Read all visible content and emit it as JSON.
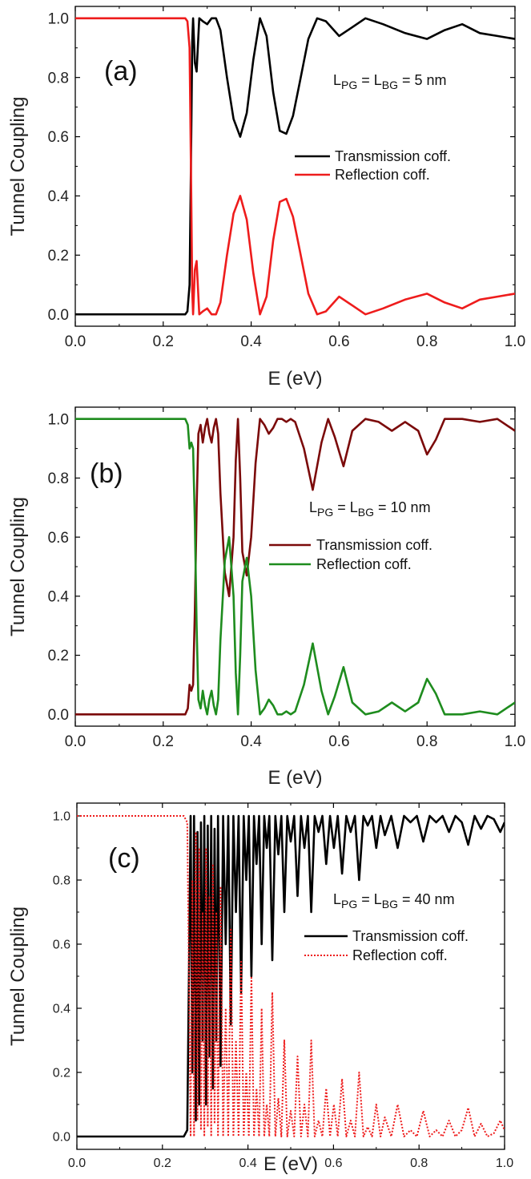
{
  "chart_data": [
    {
      "type": "line",
      "panel_label": "(a)",
      "annotation_parts": [
        "L",
        "PG",
        " = L",
        "BG",
        " = 5 nm"
      ],
      "annotation_text": "LPG = LBG = 5 nm",
      "xlabel": "E (eV)",
      "ylabel": "Tunnel Coupling",
      "xlim": [
        0.0,
        1.0
      ],
      "ylim": [
        -0.04,
        1.04
      ],
      "xticks": [
        "0.0",
        "0.2",
        "0.4",
        "0.6",
        "0.8",
        "1.0"
      ],
      "yticks": [
        "0.0",
        "0.2",
        "0.4",
        "0.6",
        "0.8",
        "1.0"
      ],
      "legend_position": "center-right",
      "series": [
        {
          "name": "Transmission coff.",
          "color": "#000000",
          "dash": "solid",
          "x": [
            0,
            0.25,
            0.255,
            0.26,
            0.263,
            0.266,
            0.268,
            0.272,
            0.276,
            0.282,
            0.29,
            0.3,
            0.31,
            0.32,
            0.33,
            0.345,
            0.36,
            0.375,
            0.39,
            0.405,
            0.42,
            0.435,
            0.45,
            0.465,
            0.48,
            0.495,
            0.51,
            0.53,
            0.55,
            0.57,
            0.6,
            0.63,
            0.66,
            0.7,
            0.75,
            0.8,
            0.84,
            0.88,
            0.92,
            0.96,
            1.0
          ],
          "y": [
            0,
            0,
            0.01,
            0.1,
            0.5,
            0.92,
            1.0,
            0.85,
            0.82,
            1.0,
            0.99,
            0.98,
            1.0,
            1.0,
            0.96,
            0.8,
            0.66,
            0.6,
            0.68,
            0.86,
            1.0,
            0.94,
            0.75,
            0.62,
            0.61,
            0.67,
            0.78,
            0.93,
            1.0,
            0.99,
            0.94,
            0.97,
            1.0,
            0.98,
            0.95,
            0.93,
            0.96,
            0.98,
            0.95,
            0.94,
            0.93
          ]
        },
        {
          "name": "Reflection coff.",
          "color": "#ee1c1c",
          "dash": "solid",
          "x": [
            0,
            0.25,
            0.255,
            0.26,
            0.263,
            0.266,
            0.268,
            0.272,
            0.276,
            0.282,
            0.29,
            0.3,
            0.31,
            0.32,
            0.33,
            0.345,
            0.36,
            0.375,
            0.39,
            0.405,
            0.42,
            0.435,
            0.45,
            0.465,
            0.48,
            0.495,
            0.51,
            0.53,
            0.55,
            0.57,
            0.6,
            0.63,
            0.66,
            0.7,
            0.75,
            0.8,
            0.84,
            0.88,
            0.92,
            0.96,
            1.0
          ],
          "y": [
            1,
            1,
            0.99,
            0.9,
            0.5,
            0.08,
            0.0,
            0.15,
            0.18,
            0.0,
            0.01,
            0.02,
            0.0,
            0.0,
            0.04,
            0.2,
            0.34,
            0.4,
            0.32,
            0.14,
            0.0,
            0.06,
            0.25,
            0.38,
            0.39,
            0.33,
            0.22,
            0.07,
            0.0,
            0.01,
            0.06,
            0.03,
            0.0,
            0.02,
            0.05,
            0.07,
            0.04,
            0.02,
            0.05,
            0.06,
            0.07
          ]
        }
      ]
    },
    {
      "type": "line",
      "panel_label": "(b)",
      "annotation_parts": [
        "L",
        "PG",
        " = L",
        "BG",
        " = 10 nm"
      ],
      "annotation_text": "LPG = LBG = 10 nm",
      "xlabel": "E (eV)",
      "ylabel": "Tunnel Coupling",
      "xlim": [
        0.0,
        1.0
      ],
      "ylim": [
        -0.04,
        1.04
      ],
      "xticks": [
        "0.0",
        "0.2",
        "0.4",
        "0.6",
        "0.8",
        "1.0"
      ],
      "yticks": [
        "0.0",
        "0.2",
        "0.4",
        "0.6",
        "0.8",
        "1.0"
      ],
      "legend_position": "center-right",
      "series": [
        {
          "name": "Transmission coff.",
          "color": "#7b0a0a",
          "dash": "solid",
          "x": [
            0,
            0.25,
            0.256,
            0.26,
            0.264,
            0.268,
            0.272,
            0.276,
            0.28,
            0.285,
            0.29,
            0.295,
            0.3,
            0.305,
            0.31,
            0.315,
            0.32,
            0.325,
            0.33,
            0.34,
            0.35,
            0.36,
            0.365,
            0.37,
            0.375,
            0.38,
            0.39,
            0.4,
            0.41,
            0.42,
            0.43,
            0.44,
            0.45,
            0.46,
            0.47,
            0.48,
            0.49,
            0.5,
            0.52,
            0.54,
            0.56,
            0.575,
            0.59,
            0.61,
            0.63,
            0.66,
            0.69,
            0.72,
            0.75,
            0.78,
            0.8,
            0.82,
            0.84,
            0.88,
            0.92,
            0.96,
            1.0
          ],
          "y": [
            0,
            0,
            0.02,
            0.1,
            0.08,
            0.1,
            0.35,
            0.7,
            0.95,
            0.98,
            0.92,
            0.97,
            1.0,
            0.95,
            0.92,
            0.97,
            1.0,
            0.95,
            0.75,
            0.48,
            0.4,
            0.6,
            0.86,
            1.0,
            0.8,
            0.55,
            0.47,
            0.6,
            0.85,
            1.0,
            0.98,
            0.95,
            0.97,
            1.0,
            1.0,
            0.99,
            1.0,
            0.99,
            0.9,
            0.76,
            0.92,
            1.0,
            0.94,
            0.84,
            0.96,
            1.0,
            0.99,
            0.96,
            0.99,
            0.96,
            0.88,
            0.93,
            1.0,
            1.0,
            0.99,
            1.0,
            0.96
          ]
        },
        {
          "name": "Reflection coff.",
          "color": "#1e8c1e",
          "dash": "solid",
          "x": [
            0,
            0.25,
            0.256,
            0.26,
            0.264,
            0.268,
            0.272,
            0.276,
            0.28,
            0.285,
            0.29,
            0.295,
            0.3,
            0.305,
            0.31,
            0.315,
            0.32,
            0.325,
            0.33,
            0.34,
            0.35,
            0.36,
            0.365,
            0.37,
            0.375,
            0.38,
            0.39,
            0.4,
            0.41,
            0.42,
            0.43,
            0.44,
            0.45,
            0.46,
            0.47,
            0.48,
            0.49,
            0.5,
            0.52,
            0.54,
            0.56,
            0.575,
            0.59,
            0.61,
            0.63,
            0.66,
            0.69,
            0.72,
            0.75,
            0.78,
            0.8,
            0.82,
            0.84,
            0.88,
            0.92,
            0.96,
            1.0
          ],
          "y": [
            1,
            1,
            0.98,
            0.9,
            0.92,
            0.9,
            0.65,
            0.3,
            0.05,
            0.02,
            0.08,
            0.03,
            0.0,
            0.05,
            0.08,
            0.03,
            0.0,
            0.05,
            0.25,
            0.52,
            0.6,
            0.4,
            0.14,
            0.0,
            0.2,
            0.45,
            0.53,
            0.4,
            0.15,
            0.0,
            0.02,
            0.05,
            0.03,
            0.0,
            0.0,
            0.01,
            0.0,
            0.01,
            0.1,
            0.24,
            0.08,
            0.0,
            0.06,
            0.16,
            0.04,
            0.0,
            0.01,
            0.04,
            0.01,
            0.04,
            0.12,
            0.07,
            0.0,
            0.0,
            0.01,
            0.0,
            0.04
          ]
        }
      ]
    },
    {
      "type": "line",
      "panel_label": "(c)",
      "annotation_parts": [
        "L",
        "PG",
        " = L",
        "BG",
        " = 40 nm"
      ],
      "annotation_text": "LPG = LBG = 40 nm",
      "xlabel": "E (eV)",
      "ylabel": "Tunnel Coupling",
      "xlim": [
        0.0,
        1.0
      ],
      "ylim": [
        -0.04,
        1.04
      ],
      "xticks": [
        "0.0",
        "0.2",
        "0.4",
        "0.6",
        "0.8",
        "1.0"
      ],
      "yticks": [
        "0.0",
        "0.2",
        "0.4",
        "0.6",
        "0.8",
        "1.0"
      ],
      "legend_position": "center-right",
      "series": [
        {
          "name": "Transmission coff.",
          "color": "#000000",
          "dash": "solid",
          "x": [
            0,
            0.25,
            0.258,
            0.262,
            0.266,
            0.27,
            0.274,
            0.278,
            0.282,
            0.286,
            0.29,
            0.294,
            0.298,
            0.302,
            0.306,
            0.31,
            0.314,
            0.318,
            0.322,
            0.326,
            0.33,
            0.336,
            0.342,
            0.348,
            0.354,
            0.36,
            0.366,
            0.372,
            0.378,
            0.384,
            0.39,
            0.396,
            0.402,
            0.408,
            0.414,
            0.42,
            0.426,
            0.432,
            0.438,
            0.444,
            0.45,
            0.457,
            0.464,
            0.471,
            0.478,
            0.485,
            0.492,
            0.5,
            0.508,
            0.516,
            0.524,
            0.532,
            0.54,
            0.548,
            0.556,
            0.565,
            0.574,
            0.583,
            0.592,
            0.601,
            0.61,
            0.62,
            0.63,
            0.64,
            0.65,
            0.66,
            0.67,
            0.68,
            0.69,
            0.7,
            0.71,
            0.72,
            0.735,
            0.75,
            0.765,
            0.78,
            0.795,
            0.81,
            0.825,
            0.84,
            0.855,
            0.87,
            0.885,
            0.9,
            0.915,
            0.93,
            0.945,
            0.96,
            0.975,
            0.99,
            1.0
          ],
          "y": [
            0,
            0,
            0.02,
            0.5,
            1.0,
            0.2,
            1.0,
            0.05,
            0.95,
            0.1,
            0.98,
            0.3,
            1.0,
            0.1,
            0.97,
            0.25,
            1.0,
            0.15,
            0.96,
            0.3,
            1.0,
            0.22,
            1.0,
            0.6,
            1.0,
            0.35,
            1.0,
            0.7,
            1.0,
            0.45,
            1.0,
            0.8,
            1.0,
            0.5,
            1.0,
            0.85,
            1.0,
            0.6,
            1.0,
            0.9,
            1.0,
            0.55,
            1.0,
            0.88,
            1.0,
            0.7,
            1.0,
            0.92,
            1.0,
            0.75,
            1.0,
            0.9,
            1.0,
            0.7,
            1.0,
            0.95,
            1.0,
            0.85,
            1.0,
            0.9,
            1.0,
            0.82,
            1.0,
            0.95,
            1.0,
            0.8,
            1.0,
            0.97,
            1.0,
            0.9,
            1.0,
            0.94,
            1.0,
            0.9,
            1.0,
            0.98,
            1.0,
            0.92,
            1.0,
            0.98,
            1.0,
            0.95,
            1.0,
            0.98,
            0.91,
            1.0,
            0.96,
            1.0,
            0.99,
            0.95,
            0.98
          ]
        },
        {
          "name": "Reflection coff.",
          "color": "#ee1c1c",
          "dash": "dotted",
          "x": [
            0,
            0.25,
            0.258,
            0.262,
            0.266,
            0.27,
            0.274,
            0.278,
            0.282,
            0.286,
            0.29,
            0.294,
            0.298,
            0.302,
            0.306,
            0.31,
            0.314,
            0.318,
            0.322,
            0.326,
            0.33,
            0.336,
            0.342,
            0.348,
            0.354,
            0.36,
            0.366,
            0.372,
            0.378,
            0.384,
            0.39,
            0.396,
            0.402,
            0.408,
            0.414,
            0.42,
            0.426,
            0.432,
            0.438,
            0.444,
            0.45,
            0.457,
            0.464,
            0.471,
            0.478,
            0.485,
            0.492,
            0.5,
            0.508,
            0.516,
            0.524,
            0.532,
            0.54,
            0.548,
            0.556,
            0.565,
            0.574,
            0.583,
            0.592,
            0.601,
            0.61,
            0.62,
            0.63,
            0.64,
            0.65,
            0.66,
            0.67,
            0.68,
            0.69,
            0.7,
            0.71,
            0.72,
            0.735,
            0.75,
            0.765,
            0.78,
            0.795,
            0.81,
            0.825,
            0.84,
            0.855,
            0.87,
            0.885,
            0.9,
            0.915,
            0.93,
            0.945,
            0.96,
            0.975,
            0.99,
            1.0
          ],
          "y": [
            1,
            1,
            0.98,
            0.5,
            0.0,
            0.8,
            0.0,
            0.95,
            0.05,
            0.9,
            0.02,
            0.7,
            0.0,
            0.9,
            0.03,
            0.75,
            0.0,
            0.85,
            0.04,
            0.7,
            0.0,
            0.78,
            0.0,
            0.4,
            0.0,
            0.65,
            0.0,
            0.3,
            0.0,
            0.55,
            0.0,
            0.2,
            0.0,
            0.5,
            0.0,
            0.15,
            0.0,
            0.4,
            0.0,
            0.1,
            0.0,
            0.45,
            0.0,
            0.12,
            0.0,
            0.3,
            0.0,
            0.08,
            0.0,
            0.25,
            0.0,
            0.1,
            0.0,
            0.3,
            0.0,
            0.05,
            0.0,
            0.15,
            0.0,
            0.1,
            0.0,
            0.18,
            0.0,
            0.05,
            0.0,
            0.2,
            0.0,
            0.03,
            0.0,
            0.1,
            0.0,
            0.06,
            0.0,
            0.1,
            0.0,
            0.02,
            0.0,
            0.08,
            0.0,
            0.02,
            0.0,
            0.05,
            0.0,
            0.02,
            0.09,
            0.0,
            0.04,
            0.0,
            0.01,
            0.05,
            0.02
          ]
        }
      ]
    }
  ]
}
